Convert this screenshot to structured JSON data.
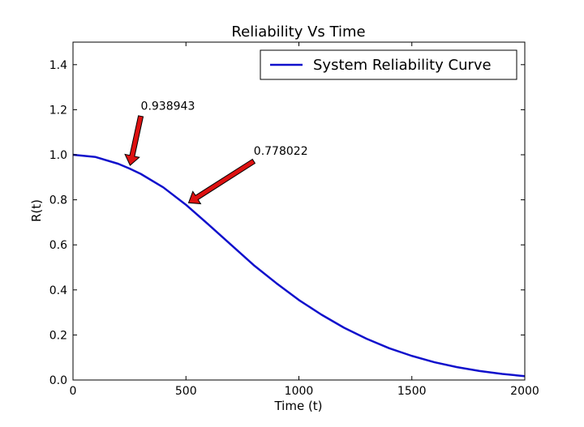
{
  "chart_data": {
    "type": "line",
    "title": "Reliability Vs Time",
    "xlabel": "Time (t)",
    "ylabel": "R(t)",
    "xlim": [
      0,
      2000
    ],
    "ylim": [
      0.0,
      1.5
    ],
    "xticks": [
      0,
      500,
      1000,
      1500,
      2000
    ],
    "xtick_labels": [
      "0",
      "500",
      "1000",
      "1500",
      "2000"
    ],
    "yticks": [
      0.0,
      0.2,
      0.4,
      0.6,
      0.8,
      1.0,
      1.2,
      1.4
    ],
    "ytick_labels": [
      "0.0",
      "0.2",
      "0.4",
      "0.6",
      "0.8",
      "1.0",
      "1.2",
      "1.4"
    ],
    "grid": false,
    "legend": {
      "position": "top-right",
      "entries": [
        "System Reliability Curve"
      ]
    },
    "series": [
      {
        "name": "System Reliability Curve",
        "color": "#1010cc",
        "x": [
          0,
          100,
          200,
          250,
          300,
          400,
          500,
          600,
          700,
          800,
          900,
          1000,
          1100,
          1200,
          1300,
          1400,
          1500,
          1600,
          1700,
          1800,
          1900,
          2000
        ],
        "y": [
          1.0,
          0.99,
          0.96,
          0.938943,
          0.915,
          0.855,
          0.778022,
          0.69,
          0.6,
          0.51,
          0.43,
          0.355,
          0.29,
          0.232,
          0.183,
          0.141,
          0.107,
          0.079,
          0.057,
          0.04,
          0.027,
          0.017
        ]
      }
    ],
    "annotations": [
      {
        "text": "0.938943",
        "point": [
          250,
          0.938943
        ],
        "text_pos": [
          300,
          1.2
        ],
        "arrow_color": "#dd1111"
      },
      {
        "text": "0.778022",
        "point": [
          500,
          0.778022
        ],
        "text_pos": [
          800,
          1.0
        ],
        "arrow_color": "#dd1111"
      }
    ]
  }
}
